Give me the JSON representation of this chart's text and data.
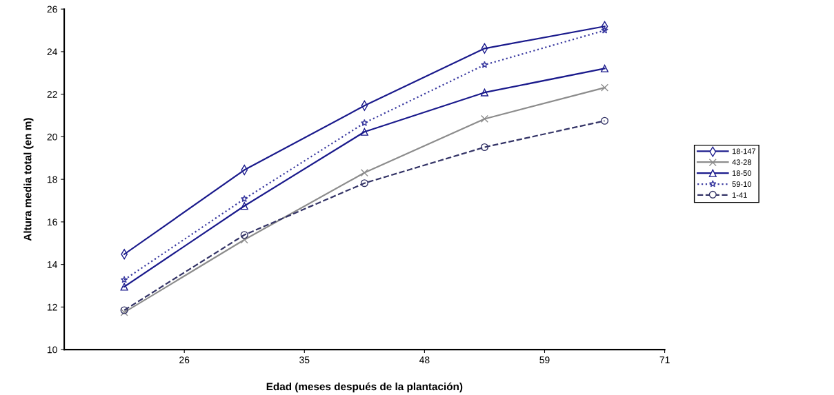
{
  "chart_data": {
    "type": "line",
    "xlabel": "Edad (meses después de la plantación)",
    "ylabel": "Altura media total (en m)",
    "categories": [
      null,
      "26",
      null,
      "35",
      null,
      "48",
      null,
      "59",
      null,
      "71"
    ],
    "ylim": [
      10,
      26
    ],
    "yticks": [
      10,
      12,
      14,
      16,
      18,
      20,
      22,
      24,
      26
    ],
    "grid": false,
    "legend": "right",
    "series": [
      {
        "name": "18-147",
        "color": "#1a1a8c",
        "marker": "diamond",
        "line_style": "solid",
        "values": [
          14.48,
          null,
          18.44,
          null,
          21.46,
          null,
          24.15,
          null,
          25.19,
          null
        ]
      },
      {
        "name": "43-28",
        "color": "#8c8c8c",
        "marker": "cross",
        "line_style": "solid",
        "values": [
          11.75,
          null,
          15.16,
          null,
          18.31,
          null,
          20.84,
          null,
          22.31,
          null
        ]
      },
      {
        "name": "18-50",
        "color": "#1a1a8c",
        "marker": "triangle",
        "line_style": "solid",
        "values": [
          12.95,
          null,
          16.75,
          null,
          20.23,
          null,
          22.08,
          null,
          23.21,
          null
        ]
      },
      {
        "name": "59-10",
        "color": "#3a3aa0",
        "marker": "star",
        "line_style": "dotted",
        "values": [
          13.28,
          null,
          17.08,
          null,
          20.65,
          null,
          23.38,
          null,
          25.0,
          null
        ]
      },
      {
        "name": "1-41",
        "color": "#333366",
        "marker": "circle",
        "line_style": "dashed",
        "values": [
          11.85,
          null,
          15.39,
          null,
          17.82,
          null,
          19.51,
          null,
          20.75,
          null
        ]
      }
    ]
  }
}
